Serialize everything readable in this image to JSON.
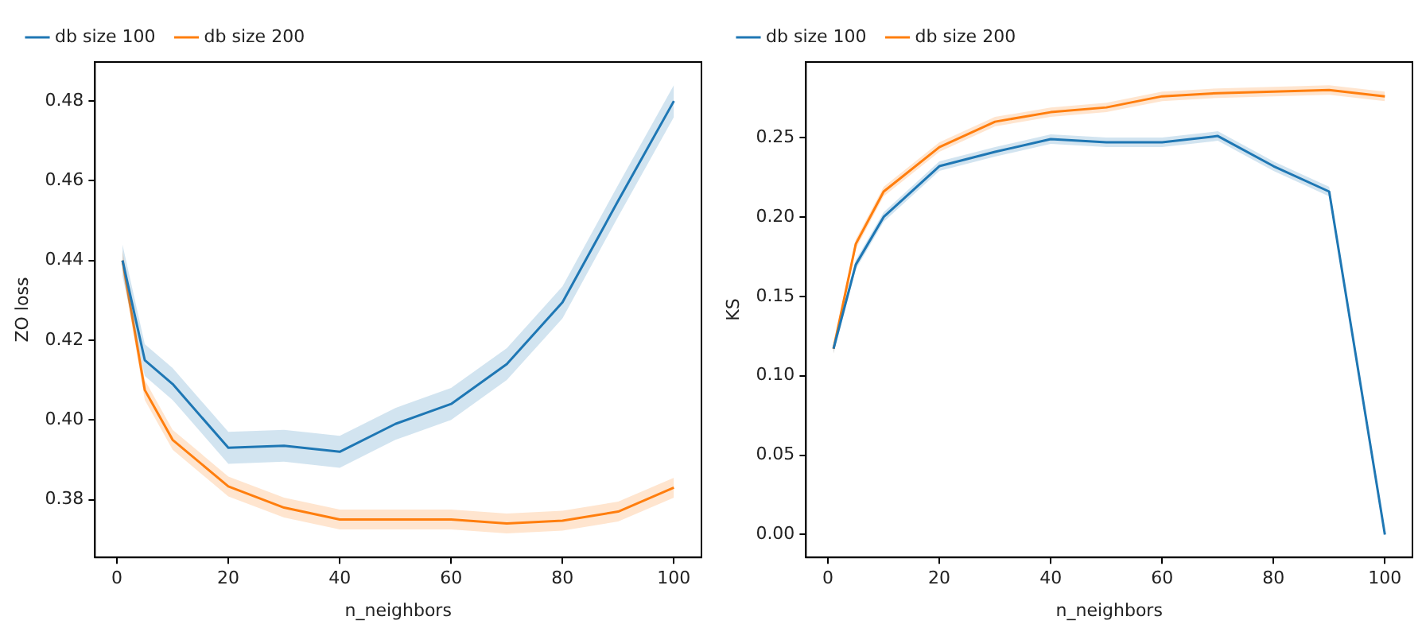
{
  "chart_data": [
    {
      "type": "line",
      "xlabel": "n_neighbors",
      "ylabel": "ZO loss",
      "x": [
        1,
        5,
        10,
        20,
        30,
        40,
        50,
        60,
        70,
        80,
        90,
        100
      ],
      "xlim": [
        -3.95,
        104.95
      ],
      "xticks": [
        0,
        20,
        40,
        60,
        80,
        100
      ],
      "ylim": [
        0.3655,
        0.4898
      ],
      "yticks": [
        0.38,
        {
          "value": 0.4,
          "label": "0.40"
        },
        0.42,
        0.44,
        0.46,
        0.48
      ],
      "grid": false,
      "legend": "top",
      "marker": "none",
      "line_style": "solid",
      "series": [
        {
          "name": "db size 100",
          "color": "#1f77b4",
          "values": [
            0.44,
            0.415,
            0.409,
            0.393,
            0.3935,
            0.392,
            0.399,
            0.404,
            0.414,
            0.4295,
            0.455,
            0.48
          ],
          "lower": [
            0.436,
            0.411,
            0.405,
            0.389,
            0.3895,
            0.388,
            0.395,
            0.4,
            0.41,
            0.4255,
            0.451,
            0.476
          ],
          "upper": [
            0.444,
            0.419,
            0.413,
            0.397,
            0.3975,
            0.396,
            0.403,
            0.408,
            0.418,
            0.4335,
            0.459,
            0.484
          ]
        },
        {
          "name": "db size 200",
          "color": "#ff7f0e",
          "values": [
            0.44,
            0.4075,
            0.395,
            0.3833,
            0.378,
            0.375,
            0.375,
            0.375,
            0.374,
            0.3747,
            0.377,
            0.383
          ],
          "lower": [
            0.4375,
            0.405,
            0.3925,
            0.3808,
            0.3755,
            0.3725,
            0.3725,
            0.3725,
            0.3715,
            0.3722,
            0.3745,
            0.3805
          ],
          "upper": [
            0.4425,
            0.41,
            0.3975,
            0.3858,
            0.3805,
            0.3775,
            0.3775,
            0.3775,
            0.3765,
            0.3772,
            0.3795,
            0.3855
          ]
        }
      ]
    },
    {
      "type": "line",
      "xlabel": "n_neighbors",
      "ylabel": "KS",
      "x": [
        1,
        5,
        10,
        20,
        30,
        40,
        50,
        60,
        70,
        80,
        90,
        100
      ],
      "xlim": [
        -3.95,
        104.95
      ],
      "xticks": [
        0,
        20,
        40,
        60,
        80,
        100
      ],
      "ylim": [
        -0.0144,
        0.2976
      ],
      "yticks": [
        {
          "value": 0,
          "label": "0.00"
        },
        0.05,
        {
          "value": 0.1,
          "label": "0.10"
        },
        0.15,
        {
          "value": 0.2,
          "label": "0.20"
        },
        0.25
      ],
      "grid": false,
      "legend": "top",
      "marker": "none",
      "line_style": "solid",
      "series": [
        {
          "name": "db size 100",
          "color": "#1f77b4",
          "values": [
            0.117,
            0.17,
            0.2,
            0.232,
            0.241,
            0.249,
            0.247,
            0.247,
            0.251,
            0.232,
            0.216,
            0.0
          ],
          "lower": [
            0.114,
            0.167,
            0.197,
            0.229,
            0.238,
            0.246,
            0.244,
            0.244,
            0.248,
            0.229,
            0.213,
            0.0
          ],
          "upper": [
            0.12,
            0.173,
            0.203,
            0.235,
            0.244,
            0.252,
            0.25,
            0.25,
            0.254,
            0.235,
            0.219,
            0.0
          ]
        },
        {
          "name": "db size 200",
          "color": "#ff7f0e",
          "values": [
            0.117,
            0.183,
            0.216,
            0.244,
            0.26,
            0.266,
            0.269,
            0.276,
            0.278,
            0.279,
            0.28,
            0.276
          ],
          "lower": [
            0.114,
            0.18,
            0.213,
            0.241,
            0.257,
            0.263,
            0.266,
            0.273,
            0.275,
            0.276,
            0.277,
            0.273
          ],
          "upper": [
            0.12,
            0.186,
            0.219,
            0.247,
            0.263,
            0.269,
            0.272,
            0.279,
            0.281,
            0.282,
            0.283,
            0.279
          ]
        }
      ]
    }
  ]
}
